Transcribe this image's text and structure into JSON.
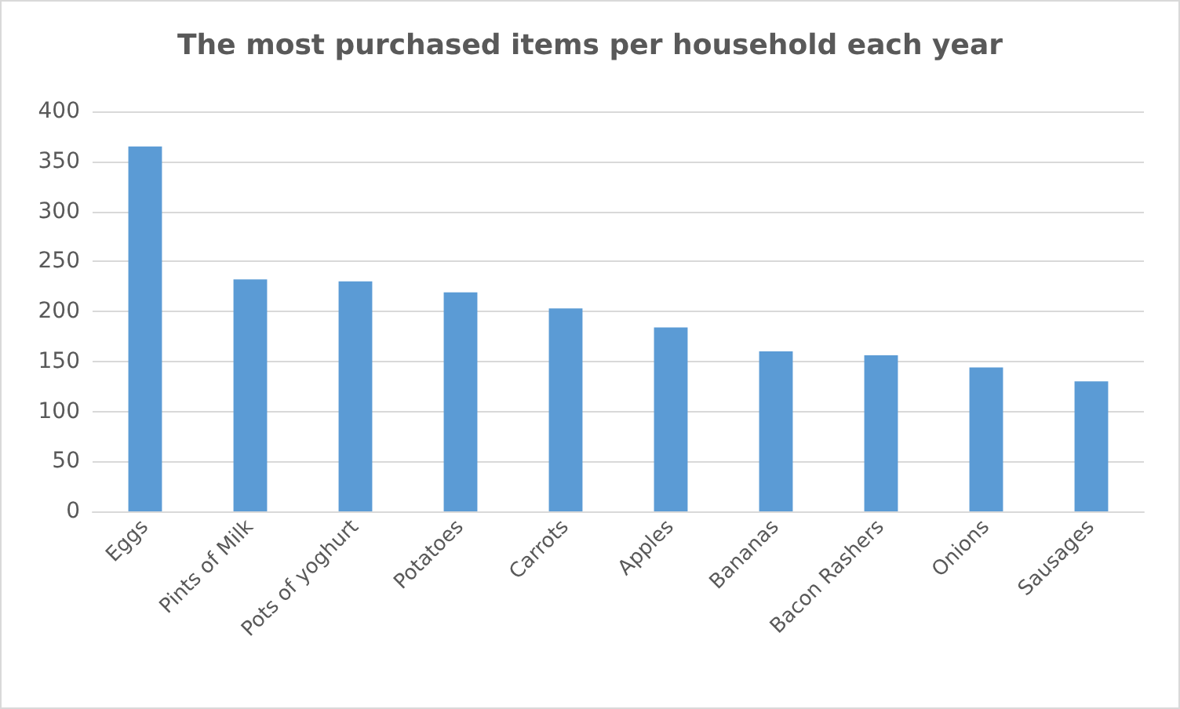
{
  "chart_data": {
    "type": "bar",
    "title": "The most purchased items per household each year",
    "categories": [
      "Eggs",
      "Pints of Milk",
      "Pots of yoghurt",
      "Potatoes",
      "Carrots",
      "Apples",
      "Bananas",
      "Bacon Rashers",
      "Onions",
      "Sausages"
    ],
    "values": [
      365,
      232,
      230,
      219,
      203,
      184,
      160,
      156,
      144,
      130
    ],
    "color": "#5b9bd5",
    "ylim": [
      0,
      400
    ],
    "yticks": [
      0,
      50,
      100,
      150,
      200,
      250,
      300,
      350,
      400
    ],
    "grid": "y"
  }
}
